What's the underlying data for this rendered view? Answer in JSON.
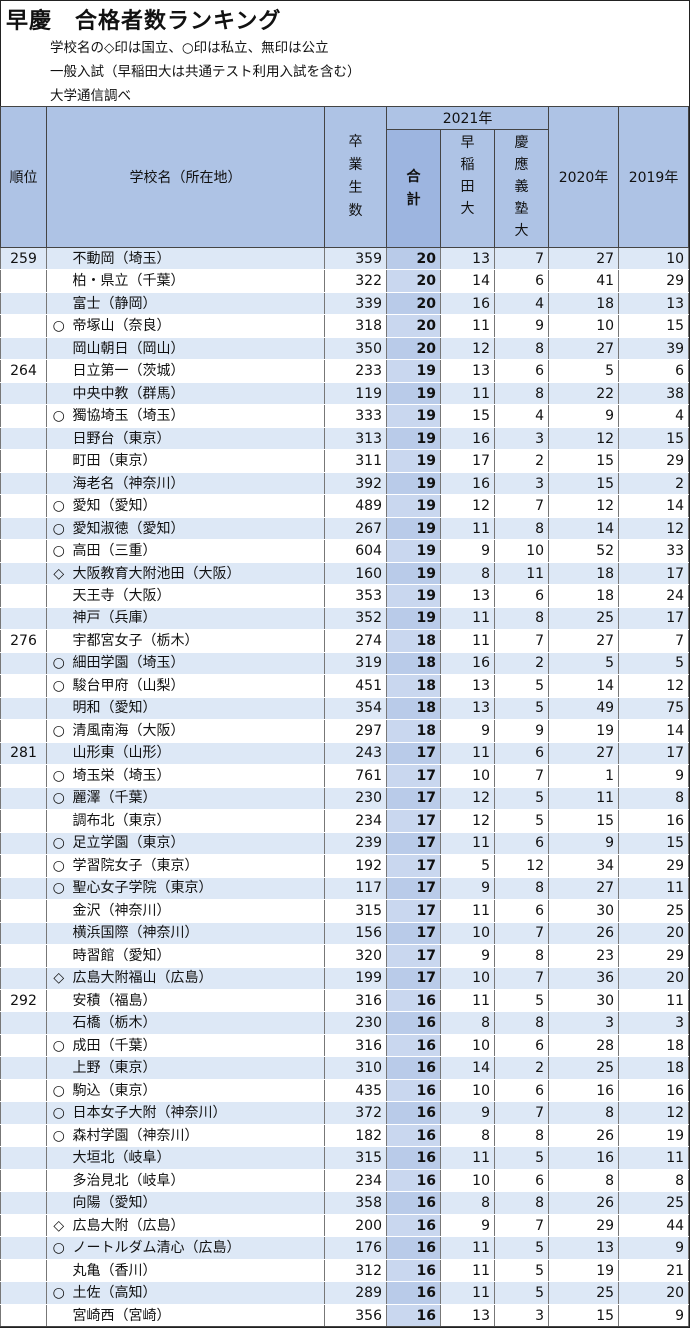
{
  "header": {
    "title": "早慶　合格者数ランキング",
    "notes": [
      "学校名の◇印は国立、○印は私立、無印は公立",
      "一般入試（早稲田大は共通テスト利用入試を含む）",
      "大学通信調べ"
    ]
  },
  "table": {
    "headers": {
      "rank": "順位",
      "school": "学校名（所在地）",
      "graduates": "卒業生数",
      "year2021": "2021年",
      "total": "合計",
      "waseda": "早稲田大",
      "keio": "慶應義塾大",
      "y2020": "2020年",
      "y2019": "2019年"
    },
    "rows": [
      {
        "rank": "259",
        "mark": "",
        "name": "不動岡（埼玉）",
        "grads": "359",
        "total": "20",
        "waseda": "13",
        "keio": "7",
        "y2020": "27",
        "y2019": "10"
      },
      {
        "rank": "",
        "mark": "",
        "name": "柏・県立（千葉）",
        "grads": "322",
        "total": "20",
        "waseda": "14",
        "keio": "6",
        "y2020": "41",
        "y2019": "29"
      },
      {
        "rank": "",
        "mark": "",
        "name": "富士（静岡）",
        "grads": "339",
        "total": "20",
        "waseda": "16",
        "keio": "4",
        "y2020": "18",
        "y2019": "13"
      },
      {
        "rank": "",
        "mark": "○",
        "name": "帝塚山（奈良）",
        "grads": "318",
        "total": "20",
        "waseda": "11",
        "keio": "9",
        "y2020": "10",
        "y2019": "15"
      },
      {
        "rank": "",
        "mark": "",
        "name": "岡山朝日（岡山）",
        "grads": "350",
        "total": "20",
        "waseda": "12",
        "keio": "8",
        "y2020": "27",
        "y2019": "39"
      },
      {
        "rank": "264",
        "mark": "",
        "name": "日立第一（茨城）",
        "grads": "233",
        "total": "19",
        "waseda": "13",
        "keio": "6",
        "y2020": "5",
        "y2019": "6"
      },
      {
        "rank": "",
        "mark": "",
        "name": "中央中教（群馬）",
        "grads": "119",
        "total": "19",
        "waseda": "11",
        "keio": "8",
        "y2020": "22",
        "y2019": "38"
      },
      {
        "rank": "",
        "mark": "○",
        "name": "獨協埼玉（埼玉）",
        "grads": "333",
        "total": "19",
        "waseda": "15",
        "keio": "4",
        "y2020": "9",
        "y2019": "4"
      },
      {
        "rank": "",
        "mark": "",
        "name": "日野台（東京）",
        "grads": "313",
        "total": "19",
        "waseda": "16",
        "keio": "3",
        "y2020": "12",
        "y2019": "15"
      },
      {
        "rank": "",
        "mark": "",
        "name": "町田（東京）",
        "grads": "311",
        "total": "19",
        "waseda": "17",
        "keio": "2",
        "y2020": "15",
        "y2019": "29"
      },
      {
        "rank": "",
        "mark": "",
        "name": "海老名（神奈川）",
        "grads": "392",
        "total": "19",
        "waseda": "16",
        "keio": "3",
        "y2020": "15",
        "y2019": "2"
      },
      {
        "rank": "",
        "mark": "○",
        "name": "愛知（愛知）",
        "grads": "489",
        "total": "19",
        "waseda": "12",
        "keio": "7",
        "y2020": "12",
        "y2019": "14"
      },
      {
        "rank": "",
        "mark": "○",
        "name": "愛知淑徳（愛知）",
        "grads": "267",
        "total": "19",
        "waseda": "11",
        "keio": "8",
        "y2020": "14",
        "y2019": "12"
      },
      {
        "rank": "",
        "mark": "○",
        "name": "高田（三重）",
        "grads": "604",
        "total": "19",
        "waseda": "9",
        "keio": "10",
        "y2020": "52",
        "y2019": "33"
      },
      {
        "rank": "",
        "mark": "◇",
        "name": "大阪教育大附池田（大阪）",
        "grads": "160",
        "total": "19",
        "waseda": "8",
        "keio": "11",
        "y2020": "18",
        "y2019": "17"
      },
      {
        "rank": "",
        "mark": "",
        "name": "天王寺（大阪）",
        "grads": "353",
        "total": "19",
        "waseda": "13",
        "keio": "6",
        "y2020": "18",
        "y2019": "24"
      },
      {
        "rank": "",
        "mark": "",
        "name": "神戸（兵庫）",
        "grads": "352",
        "total": "19",
        "waseda": "11",
        "keio": "8",
        "y2020": "25",
        "y2019": "17"
      },
      {
        "rank": "276",
        "mark": "",
        "name": "宇都宮女子（栃木）",
        "grads": "274",
        "total": "18",
        "waseda": "11",
        "keio": "7",
        "y2020": "27",
        "y2019": "7"
      },
      {
        "rank": "",
        "mark": "○",
        "name": "細田学園（埼玉）",
        "grads": "319",
        "total": "18",
        "waseda": "16",
        "keio": "2",
        "y2020": "5",
        "y2019": "5"
      },
      {
        "rank": "",
        "mark": "○",
        "name": "駿台甲府（山梨）",
        "grads": "451",
        "total": "18",
        "waseda": "13",
        "keio": "5",
        "y2020": "14",
        "y2019": "12"
      },
      {
        "rank": "",
        "mark": "",
        "name": "明和（愛知）",
        "grads": "354",
        "total": "18",
        "waseda": "13",
        "keio": "5",
        "y2020": "49",
        "y2019": "75"
      },
      {
        "rank": "",
        "mark": "○",
        "name": "清風南海（大阪）",
        "grads": "297",
        "total": "18",
        "waseda": "9",
        "keio": "9",
        "y2020": "19",
        "y2019": "14"
      },
      {
        "rank": "281",
        "mark": "",
        "name": "山形東（山形）",
        "grads": "243",
        "total": "17",
        "waseda": "11",
        "keio": "6",
        "y2020": "27",
        "y2019": "17"
      },
      {
        "rank": "",
        "mark": "○",
        "name": "埼玉栄（埼玉）",
        "grads": "761",
        "total": "17",
        "waseda": "10",
        "keio": "7",
        "y2020": "1",
        "y2019": "9"
      },
      {
        "rank": "",
        "mark": "○",
        "name": "麗澤（千葉）",
        "grads": "230",
        "total": "17",
        "waseda": "12",
        "keio": "5",
        "y2020": "11",
        "y2019": "8"
      },
      {
        "rank": "",
        "mark": "",
        "name": "調布北（東京）",
        "grads": "234",
        "total": "17",
        "waseda": "12",
        "keio": "5",
        "y2020": "15",
        "y2019": "16"
      },
      {
        "rank": "",
        "mark": "○",
        "name": "足立学園（東京）",
        "grads": "239",
        "total": "17",
        "waseda": "11",
        "keio": "6",
        "y2020": "9",
        "y2019": "15"
      },
      {
        "rank": "",
        "mark": "○",
        "name": "学習院女子（東京）",
        "grads": "192",
        "total": "17",
        "waseda": "5",
        "keio": "12",
        "y2020": "34",
        "y2019": "29"
      },
      {
        "rank": "",
        "mark": "○",
        "name": "聖心女子学院（東京）",
        "grads": "117",
        "total": "17",
        "waseda": "9",
        "keio": "8",
        "y2020": "27",
        "y2019": "11"
      },
      {
        "rank": "",
        "mark": "",
        "name": "金沢（神奈川）",
        "grads": "315",
        "total": "17",
        "waseda": "11",
        "keio": "6",
        "y2020": "30",
        "y2019": "25"
      },
      {
        "rank": "",
        "mark": "",
        "name": "横浜国際（神奈川）",
        "grads": "156",
        "total": "17",
        "waseda": "10",
        "keio": "7",
        "y2020": "26",
        "y2019": "20"
      },
      {
        "rank": "",
        "mark": "",
        "name": "時習館（愛知）",
        "grads": "320",
        "total": "17",
        "waseda": "9",
        "keio": "8",
        "y2020": "23",
        "y2019": "29"
      },
      {
        "rank": "",
        "mark": "◇",
        "name": "広島大附福山（広島）",
        "grads": "199",
        "total": "17",
        "waseda": "10",
        "keio": "7",
        "y2020": "36",
        "y2019": "20"
      },
      {
        "rank": "292",
        "mark": "",
        "name": "安積（福島）",
        "grads": "316",
        "total": "16",
        "waseda": "11",
        "keio": "5",
        "y2020": "30",
        "y2019": "11"
      },
      {
        "rank": "",
        "mark": "",
        "name": "石橋（栃木）",
        "grads": "230",
        "total": "16",
        "waseda": "8",
        "keio": "8",
        "y2020": "3",
        "y2019": "3"
      },
      {
        "rank": "",
        "mark": "○",
        "name": "成田（千葉）",
        "grads": "316",
        "total": "16",
        "waseda": "10",
        "keio": "6",
        "y2020": "28",
        "y2019": "18"
      },
      {
        "rank": "",
        "mark": "",
        "name": "上野（東京）",
        "grads": "310",
        "total": "16",
        "waseda": "14",
        "keio": "2",
        "y2020": "25",
        "y2019": "18"
      },
      {
        "rank": "",
        "mark": "○",
        "name": "駒込（東京）",
        "grads": "435",
        "total": "16",
        "waseda": "10",
        "keio": "6",
        "y2020": "16",
        "y2019": "16"
      },
      {
        "rank": "",
        "mark": "○",
        "name": "日本女子大附（神奈川）",
        "grads": "372",
        "total": "16",
        "waseda": "9",
        "keio": "7",
        "y2020": "8",
        "y2019": "12"
      },
      {
        "rank": "",
        "mark": "○",
        "name": "森村学園（神奈川）",
        "grads": "182",
        "total": "16",
        "waseda": "8",
        "keio": "8",
        "y2020": "26",
        "y2019": "19"
      },
      {
        "rank": "",
        "mark": "",
        "name": "大垣北（岐阜）",
        "grads": "315",
        "total": "16",
        "waseda": "11",
        "keio": "5",
        "y2020": "16",
        "y2019": "11"
      },
      {
        "rank": "",
        "mark": "",
        "name": "多治見北（岐阜）",
        "grads": "234",
        "total": "16",
        "waseda": "10",
        "keio": "6",
        "y2020": "8",
        "y2019": "8"
      },
      {
        "rank": "",
        "mark": "",
        "name": "向陽（愛知）",
        "grads": "358",
        "total": "16",
        "waseda": "8",
        "keio": "8",
        "y2020": "26",
        "y2019": "25"
      },
      {
        "rank": "",
        "mark": "◇",
        "name": "広島大附（広島）",
        "grads": "200",
        "total": "16",
        "waseda": "9",
        "keio": "7",
        "y2020": "29",
        "y2019": "44"
      },
      {
        "rank": "",
        "mark": "○",
        "name": "ノートルダム清心（広島）",
        "grads": "176",
        "total": "16",
        "waseda": "11",
        "keio": "5",
        "y2020": "13",
        "y2019": "9"
      },
      {
        "rank": "",
        "mark": "",
        "name": "丸亀（香川）",
        "grads": "312",
        "total": "16",
        "waseda": "11",
        "keio": "5",
        "y2020": "19",
        "y2019": "21"
      },
      {
        "rank": "",
        "mark": "○",
        "name": "土佐（高知）",
        "grads": "289",
        "total": "16",
        "waseda": "11",
        "keio": "5",
        "y2020": "25",
        "y2019": "20"
      },
      {
        "rank": "",
        "mark": "",
        "name": "宮崎西（宮崎）",
        "grads": "356",
        "total": "16",
        "waseda": "13",
        "keio": "3",
        "y2020": "15",
        "y2019": "9"
      }
    ]
  }
}
